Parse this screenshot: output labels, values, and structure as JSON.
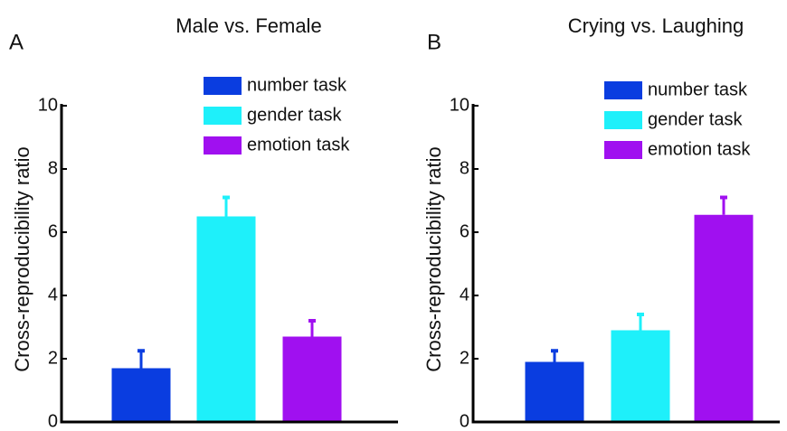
{
  "chart_data": [
    {
      "type": "bar",
      "label": "A",
      "title": "Male vs. Female",
      "ylabel": "Cross-reproducibility ratio",
      "ylim": [
        0,
        10
      ],
      "yticks": [
        0,
        2,
        4,
        6,
        8,
        10
      ],
      "series": [
        {
          "name": "number task",
          "color": "#0a3de0",
          "values": [
            1.7
          ],
          "errors": [
            0.55
          ]
        },
        {
          "name": "gender task",
          "color": "#1ef0fa",
          "values": [
            6.5
          ],
          "errors": [
            0.6
          ]
        },
        {
          "name": "emotion task",
          "color": "#a010f0",
          "values": [
            2.7
          ],
          "errors": [
            0.5
          ]
        }
      ]
    },
    {
      "type": "bar",
      "label": "B",
      "title": "Crying vs. Laughing",
      "ylabel": "Cross-reproducibility ratio",
      "ylim": [
        0,
        10
      ],
      "yticks": [
        0,
        2,
        4,
        6,
        8,
        10
      ],
      "series": [
        {
          "name": "number task",
          "color": "#0a3de0",
          "values": [
            1.9
          ],
          "errors": [
            0.35
          ]
        },
        {
          "name": "gender task",
          "color": "#1ef0fa",
          "values": [
            2.9
          ],
          "errors": [
            0.5
          ]
        },
        {
          "name": "emotion task",
          "color": "#a010f0",
          "values": [
            6.55
          ],
          "errors": [
            0.55
          ]
        }
      ]
    }
  ]
}
